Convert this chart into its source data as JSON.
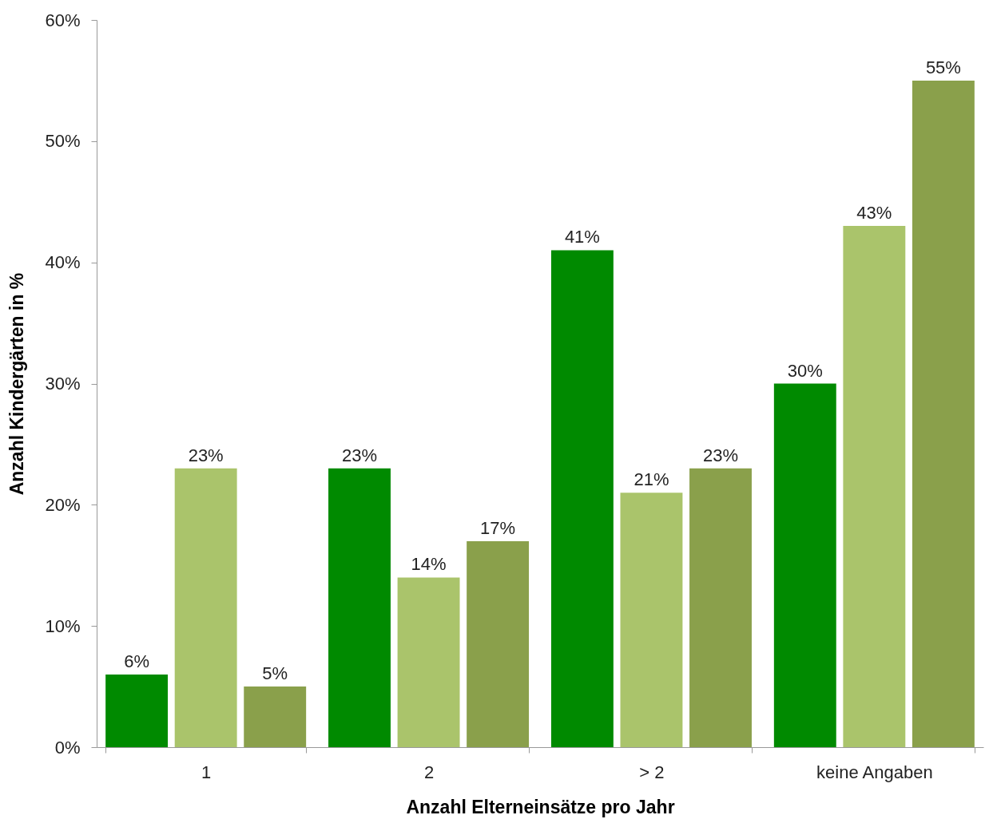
{
  "chart_data": {
    "type": "bar",
    "xlabel": "Anzahl Elterneinsätze pro Jahr",
    "ylabel": "Anzahl Kindergärten in %",
    "categories": [
      "1",
      "2",
      "> 2",
      "keine Angaben"
    ],
    "series": [
      {
        "color": "#008a00",
        "values": [
          6,
          23,
          41,
          30
        ],
        "value_labels": [
          "6%",
          "23%",
          "41%",
          "30%"
        ]
      },
      {
        "color": "#aac46b",
        "values": [
          23,
          14,
          21,
          43
        ],
        "value_labels": [
          "23%",
          "14%",
          "21%",
          "43%"
        ]
      },
      {
        "color": "#8aa04b",
        "values": [
          5,
          17,
          23,
          55
        ],
        "value_labels": [
          "5%",
          "17%",
          "23%",
          "55%"
        ]
      }
    ],
    "ylim": [
      0,
      60
    ],
    "yticks": [
      {
        "value": 0,
        "label": "0%"
      },
      {
        "value": 10,
        "label": "10%"
      },
      {
        "value": 20,
        "label": "20%"
      },
      {
        "value": 30,
        "label": "30%"
      },
      {
        "value": 40,
        "label": "40%"
      },
      {
        "value": 50,
        "label": "50%"
      },
      {
        "value": 60,
        "label": "60%"
      }
    ],
    "grid": false,
    "legend": false
  }
}
